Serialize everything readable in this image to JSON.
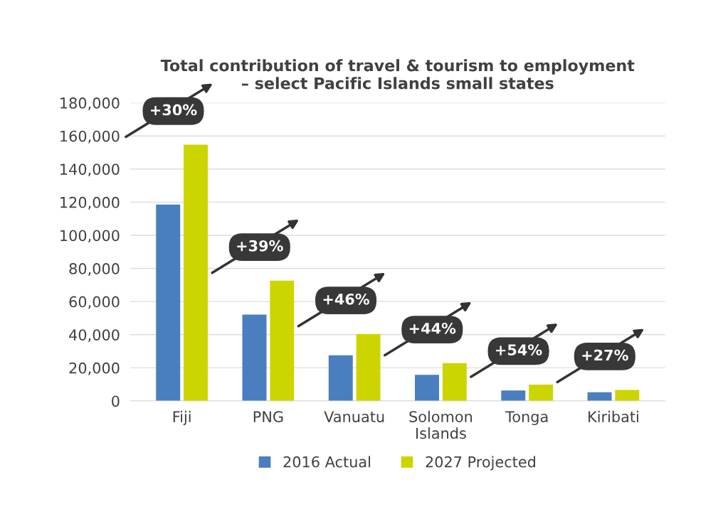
{
  "chart_data": {
    "type": "bar",
    "title": "Total contribution of travel & tourism to employment\n– select Pacific Islands small states",
    "categories": [
      "Fiji",
      "PNG",
      "Vanuatu",
      "Solomon Islands",
      "Tonga",
      "Kiribati"
    ],
    "series": [
      {
        "name": "2016 Actual",
        "color": "#4a7ebf",
        "values": [
          118600,
          52100,
          27600,
          15700,
          6300,
          5200
        ]
      },
      {
        "name": "2027 Projected",
        "color": "#cdd500",
        "values": [
          154700,
          72600,
          40400,
          22800,
          9800,
          6600
        ]
      }
    ],
    "ylim": [
      0,
      180000
    ],
    "yticks": [
      {
        "value": 0,
        "label": "0"
      },
      {
        "value": 20000,
        "label": "20,000"
      },
      {
        "value": 40000,
        "label": "40,000"
      },
      {
        "value": 60000,
        "label": "60,000"
      },
      {
        "value": 80000,
        "label": "80,000"
      },
      {
        "value": 100000,
        "label": "100,000"
      },
      {
        "value": 120000,
        "label": "120,000"
      },
      {
        "value": 140000,
        "label": "140,000"
      },
      {
        "value": 160000,
        "label": "160,000"
      },
      {
        "value": 180000,
        "label": "180,000"
      }
    ],
    "annotations": [
      "+30%",
      "+39%",
      "+46%",
      "+44%",
      "+54%",
      "+27%"
    ],
    "grid": "y",
    "legend": "bottom"
  }
}
